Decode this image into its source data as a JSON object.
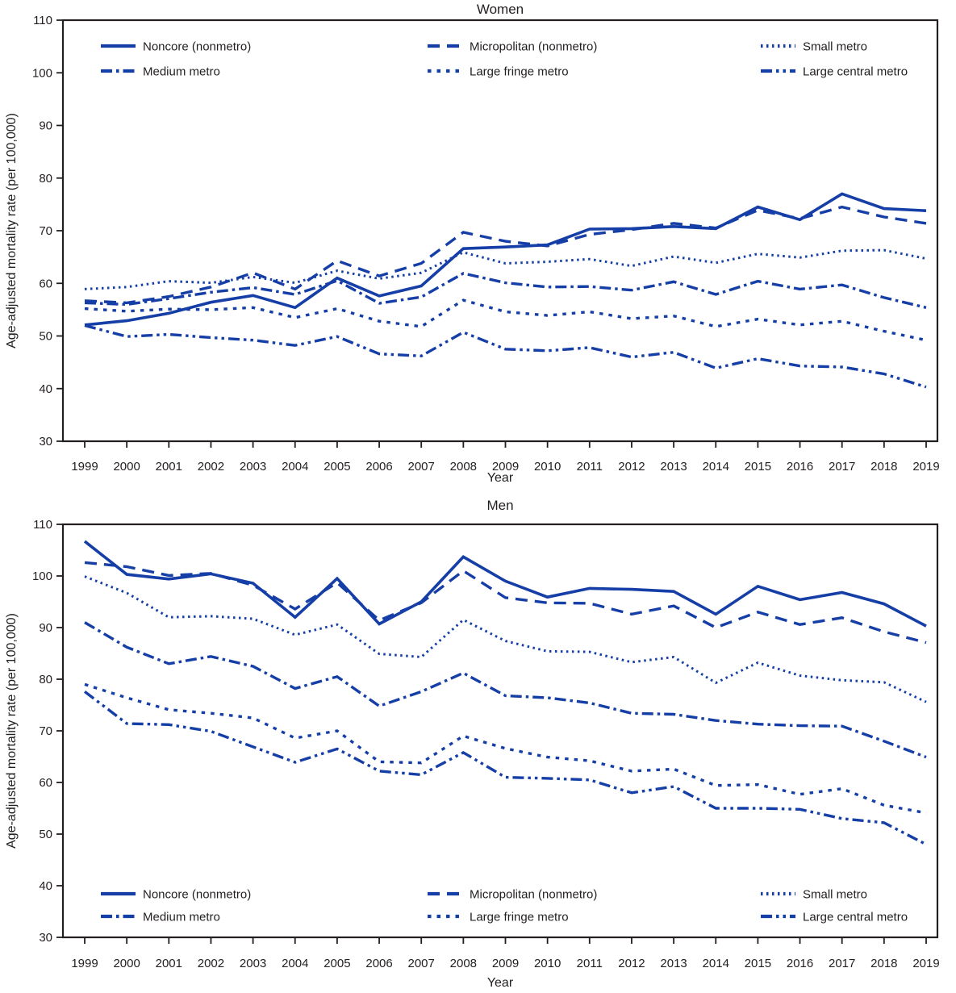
{
  "figure": {
    "description": "Two-panel line chart of age-adjusted mortality rates by urbanization level, 1999-2019"
  },
  "style": {
    "line_color": "#153ea6",
    "axis_color": "#231f20",
    "text_color": "#231f20",
    "background": "#ffffff"
  },
  "chart_data": [
    {
      "type": "line",
      "title": "Women",
      "xlabel": "Year",
      "ylabel": "Age-adjusted mortality rate (per 100,000)",
      "x": [
        1999,
        2000,
        2001,
        2002,
        2003,
        2004,
        2005,
        2006,
        2007,
        2008,
        2009,
        2010,
        2011,
        2012,
        2013,
        2014,
        2015,
        2016,
        2017,
        2018,
        2019
      ],
      "ylim": [
        30,
        110
      ],
      "yticks": [
        30,
        40,
        50,
        60,
        70,
        80,
        90,
        100,
        110
      ],
      "grid": false,
      "legend_position": "top-inside",
      "series": [
        {
          "name": "Noncore (nonmetro)",
          "line_style": "solid",
          "values": [
            52.1,
            52.9,
            54.3,
            56.4,
            57.7,
            55.4,
            61.0,
            57.6,
            59.5,
            66.6,
            66.9,
            67.3,
            70.3,
            70.4,
            70.8,
            70.4,
            74.5,
            72.1,
            77.0,
            74.2,
            73.8
          ]
        },
        {
          "name": "Micropolitan (nonmetro)",
          "line_style": "long-dash",
          "values": [
            56.7,
            56.3,
            57.5,
            59.3,
            62.0,
            58.9,
            64.3,
            61.4,
            63.8,
            69.7,
            68.0,
            67.1,
            69.3,
            70.2,
            71.4,
            70.5,
            73.9,
            72.3,
            74.5,
            72.6,
            71.4
          ]
        },
        {
          "name": "Small metro",
          "line_style": "fine-dot",
          "values": [
            58.9,
            59.3,
            60.4,
            60.1,
            61.2,
            60.1,
            62.4,
            60.9,
            62.0,
            65.9,
            63.8,
            64.1,
            64.6,
            63.3,
            65.1,
            63.9,
            65.6,
            64.9,
            66.2,
            66.3,
            64.7
          ]
        },
        {
          "name": "Medium metro",
          "line_style": "dash-dot",
          "values": [
            56.3,
            56.0,
            57.1,
            58.3,
            59.2,
            57.9,
            60.5,
            56.2,
            57.4,
            61.9,
            60.1,
            59.3,
            59.4,
            58.7,
            60.3,
            57.9,
            60.4,
            58.9,
            59.7,
            57.3,
            55.4
          ]
        },
        {
          "name": "Large fringe metro",
          "line_style": "square-dot",
          "values": [
            55.2,
            54.7,
            55.1,
            55.0,
            55.4,
            53.5,
            55.2,
            52.8,
            51.8,
            56.8,
            54.6,
            53.9,
            54.6,
            53.3,
            53.8,
            51.8,
            53.2,
            52.1,
            52.8,
            50.9,
            49.2
          ]
        },
        {
          "name": "Large central metro",
          "line_style": "dash-dot-dot",
          "values": [
            52.0,
            49.9,
            50.3,
            49.7,
            49.2,
            48.2,
            49.9,
            46.6,
            46.2,
            50.7,
            47.5,
            47.2,
            47.8,
            46.0,
            46.9,
            43.9,
            45.7,
            44.3,
            44.1,
            42.8,
            40.3
          ]
        }
      ]
    },
    {
      "type": "line",
      "title": "Men",
      "xlabel": "Year",
      "ylabel": "Age-adjusted mortality rate (per 100,000)",
      "x": [
        1999,
        2000,
        2001,
        2002,
        2003,
        2004,
        2005,
        2006,
        2007,
        2008,
        2009,
        2010,
        2011,
        2012,
        2013,
        2014,
        2015,
        2016,
        2017,
        2018,
        2019
      ],
      "ylim": [
        30,
        110
      ],
      "yticks": [
        30,
        40,
        50,
        60,
        70,
        80,
        90,
        100,
        110
      ],
      "grid": false,
      "legend_position": "bottom-inside",
      "series": [
        {
          "name": "Noncore (nonmetro)",
          "line_style": "solid",
          "values": [
            106.7,
            100.3,
            99.4,
            100.4,
            98.6,
            92.0,
            99.5,
            90.7,
            95.0,
            103.7,
            99.0,
            95.9,
            97.6,
            97.4,
            97.0,
            92.6,
            98.0,
            95.4,
            96.8,
            94.6,
            90.3
          ]
        },
        {
          "name": "Micropolitan (nonmetro)",
          "line_style": "long-dash",
          "values": [
            102.6,
            101.8,
            100.1,
            100.5,
            98.2,
            93.6,
            98.7,
            91.4,
            94.8,
            101.0,
            95.8,
            94.8,
            94.7,
            92.6,
            94.2,
            90.0,
            93.0,
            90.6,
            91.9,
            89.2,
            87.1
          ]
        },
        {
          "name": "Small metro",
          "line_style": "fine-dot",
          "values": [
            99.9,
            96.7,
            92.0,
            92.2,
            91.7,
            88.6,
            90.6,
            84.9,
            84.3,
            91.5,
            87.4,
            85.4,
            85.3,
            83.3,
            84.3,
            79.3,
            83.2,
            80.7,
            79.8,
            79.4,
            75.6
          ]
        },
        {
          "name": "Medium metro",
          "line_style": "dash-dot",
          "values": [
            91.0,
            86.2,
            83.0,
            84.4,
            82.5,
            78.2,
            80.5,
            74.8,
            77.6,
            81.2,
            76.8,
            76.4,
            75.4,
            73.4,
            73.2,
            72.0,
            71.3,
            71.0,
            70.9,
            68.0,
            64.9
          ]
        },
        {
          "name": "Large fringe metro",
          "line_style": "square-dot",
          "values": [
            79.0,
            76.4,
            74.1,
            73.4,
            72.5,
            68.6,
            70.0,
            64.0,
            63.8,
            69.0,
            66.6,
            64.9,
            64.2,
            62.2,
            62.6,
            59.4,
            59.6,
            57.7,
            58.8,
            55.6,
            54.1
          ]
        },
        {
          "name": "Large central metro",
          "line_style": "dash-dot-dot",
          "values": [
            77.6,
            71.4,
            71.2,
            69.9,
            66.9,
            63.9,
            66.5,
            62.2,
            61.5,
            65.8,
            61.0,
            60.8,
            60.5,
            58.0,
            59.2,
            55.0,
            55.0,
            54.8,
            53.0,
            52.2,
            48.0
          ]
        }
      ]
    }
  ]
}
